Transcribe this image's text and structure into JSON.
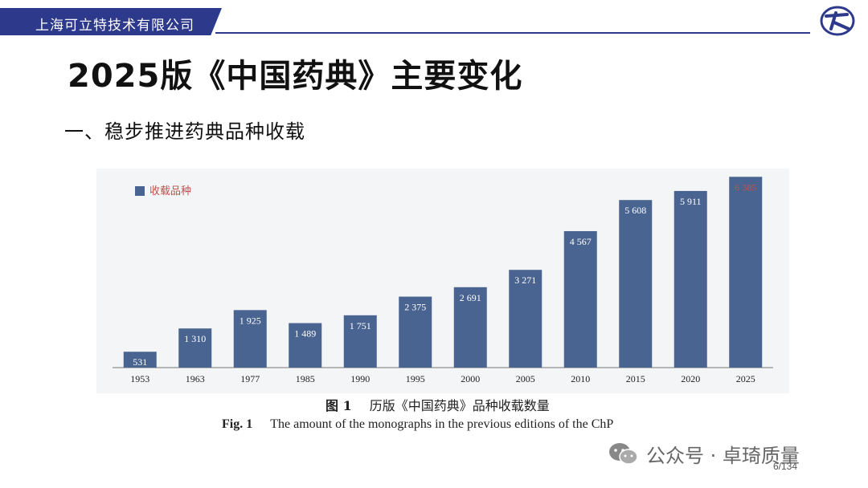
{
  "header": {
    "company": "上海可立特技术有限公司",
    "logo_icon": "company-logo-icon",
    "brand_color": "#2d3a8c"
  },
  "slide": {
    "title": "2025版《中国药典》主要变化",
    "subtitle": "一、稳步推进药典品种收载",
    "page": "6/134"
  },
  "figure": {
    "caption_cn_label": "图 1",
    "caption_cn": "历版《中国药典》品种收载数量",
    "caption_en_label": "Fig. 1",
    "caption_en": "The amount of the monographs in the previous editions of the ChP"
  },
  "watermark": {
    "text": "公众号 · 卓琦质量",
    "icon": "wechat-icon"
  },
  "chart_data": {
    "type": "bar",
    "title": "",
    "xlabel": "",
    "ylabel": "",
    "ylim": [
      0,
      6500
    ],
    "legend": {
      "label": "收载品种",
      "placement": "top-left"
    },
    "bar_color": "#4a6491",
    "highlight_label_color": "#c0504d",
    "categories": [
      "1953",
      "1963",
      "1977",
      "1985",
      "1990",
      "1995",
      "2000",
      "2005",
      "2010",
      "2015",
      "2020",
      "2025"
    ],
    "values": [
      531,
      1310,
      1925,
      1489,
      1751,
      2375,
      2691,
      3271,
      4567,
      5608,
      5911,
      6385
    ],
    "value_labels": [
      "531",
      "1 310",
      "1 925",
      "1 489",
      "1 751",
      "2 375",
      "2 691",
      "3 271",
      "4 567",
      "5 608",
      "5 911",
      "6 385"
    ]
  }
}
